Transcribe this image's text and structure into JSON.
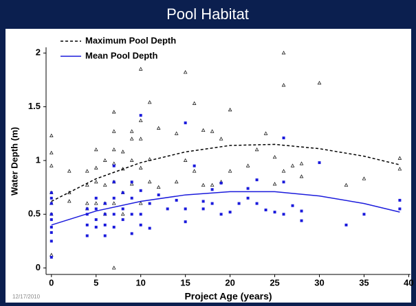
{
  "title": "Pool Habitat",
  "footer_date": "12/17/2010",
  "chart_data": {
    "type": "scatter",
    "xlabel": "Project Age (years)",
    "ylabel": "Water Depth (m)",
    "xlim": [
      -0.6,
      40.2
    ],
    "ylim": [
      -0.06,
      2.04
    ],
    "xticks": [
      0,
      5,
      10,
      15,
      20,
      25,
      30,
      35,
      40
    ],
    "yticks": [
      0,
      0.5,
      1,
      1.5,
      2
    ],
    "legend": "upper left",
    "series": [
      {
        "name": "Maximum Pool Depth",
        "color": "#000000",
        "marker": "triangle",
        "dash": true,
        "x": [
          0,
          0,
          0,
          0,
          0,
          0,
          0,
          2,
          2,
          2,
          4,
          4,
          4,
          4,
          5,
          5,
          5,
          5,
          6,
          6,
          6,
          6,
          7,
          7,
          7,
          7,
          7,
          7,
          7,
          8,
          8,
          8,
          8,
          9,
          9,
          9,
          9,
          10,
          10,
          10,
          10,
          10,
          11,
          11,
          11,
          12,
          12,
          14,
          14,
          15,
          15,
          16,
          16,
          17,
          17,
          18,
          18,
          19,
          19,
          20,
          20,
          22,
          23,
          24,
          25,
          25,
          26,
          26,
          26,
          27,
          28,
          28,
          30,
          33,
          35,
          39,
          39
        ],
        "values": [
          1.23,
          1.07,
          0.95,
          0.7,
          0.6,
          0.5,
          0.12,
          0.9,
          0.7,
          0.62,
          0.9,
          0.77,
          0.6,
          0.55,
          1.1,
          0.93,
          0.8,
          0.6,
          1.0,
          0.77,
          0.6,
          0.5,
          1.45,
          1.27,
          1.1,
          0.97,
          0.8,
          0.6,
          0.0,
          1.08,
          0.92,
          0.7,
          0.5,
          1.27,
          1.2,
          1.0,
          0.78,
          1.85,
          1.37,
          1.2,
          0.93,
          0.6,
          1.54,
          1.01,
          0.8,
          1.3,
          0.75,
          1.25,
          0.8,
          1.82,
          1.0,
          1.53,
          0.9,
          1.28,
          0.77,
          1.27,
          0.77,
          1.2,
          0.8,
          1.47,
          0.9,
          0.95,
          1.1,
          1.25,
          1.03,
          0.78,
          2.0,
          1.7,
          0.9,
          0.95,
          0.97,
          0.85,
          1.72,
          0.77,
          0.83,
          1.02,
          0.92
        ],
        "fit": {
          "x": [
            0,
            5,
            10,
            15,
            20,
            25,
            30,
            35,
            39
          ],
          "values": [
            0.62,
            0.83,
            0.98,
            1.08,
            1.14,
            1.15,
            1.11,
            1.04,
            0.96
          ]
        }
      },
      {
        "name": "Mean Pool Depth",
        "color": "#1a1adc",
        "marker": "square",
        "dash": false,
        "x": [
          0,
          0,
          0,
          0,
          0,
          0,
          0,
          0,
          0,
          4,
          4,
          4,
          4,
          5,
          5,
          5,
          5,
          6,
          6,
          6,
          6,
          7,
          7,
          7,
          7,
          7,
          8,
          8,
          8,
          9,
          9,
          9,
          9,
          10,
          10,
          10,
          10,
          11,
          11,
          12,
          13,
          14,
          15,
          15,
          15,
          16,
          17,
          17,
          18,
          18,
          19,
          19,
          20,
          21,
          22,
          22,
          23,
          23,
          24,
          25,
          26,
          26,
          26,
          27,
          28,
          28,
          30,
          33,
          35,
          39,
          39
        ],
        "values": [
          0.7,
          0.65,
          0.6,
          0.5,
          0.45,
          0.38,
          0.33,
          0.25,
          0.1,
          0.55,
          0.5,
          0.4,
          0.3,
          0.65,
          0.55,
          0.45,
          0.38,
          0.6,
          0.5,
          0.4,
          0.3,
          0.95,
          0.8,
          0.65,
          0.5,
          0.38,
          0.7,
          0.55,
          0.45,
          0.8,
          0.65,
          0.5,
          0.32,
          1.42,
          0.72,
          0.5,
          0.4,
          0.6,
          0.37,
          0.68,
          0.55,
          0.63,
          1.35,
          0.55,
          0.43,
          0.95,
          0.62,
          0.55,
          0.73,
          0.6,
          0.79,
          0.5,
          0.52,
          0.6,
          0.74,
          0.65,
          0.82,
          0.6,
          0.54,
          0.52,
          1.21,
          0.8,
          0.5,
          0.58,
          0.53,
          0.44,
          0.98,
          0.4,
          0.5,
          0.63,
          0.55
        ],
        "fit": {
          "x": [
            0,
            5,
            10,
            15,
            20,
            25,
            30,
            35,
            39
          ],
          "values": [
            0.4,
            0.53,
            0.62,
            0.68,
            0.71,
            0.71,
            0.67,
            0.6,
            0.52
          ]
        }
      }
    ]
  }
}
